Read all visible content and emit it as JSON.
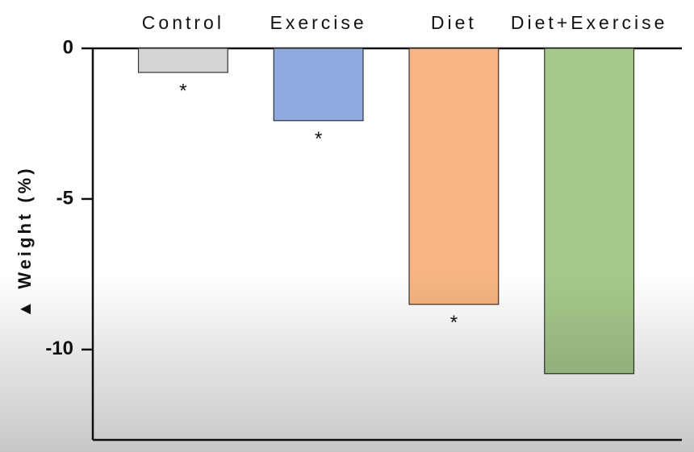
{
  "chart_data": {
    "type": "bar",
    "y_label": "▲ Weight (%)",
    "categories": [
      "Control",
      "Exercise",
      "Diet",
      "Diet+Exercise"
    ],
    "values": [
      -0.8,
      -2.4,
      -8.5,
      -10.8
    ],
    "colors": [
      "#d4d4d4",
      "#8eaade",
      "#f8b483",
      "#a5c98b"
    ],
    "annotations": [
      "*",
      "*",
      "*",
      null
    ],
    "ylim": [
      -13,
      0
    ],
    "yticks": [
      0,
      -5,
      -10
    ],
    "grid": false
  }
}
